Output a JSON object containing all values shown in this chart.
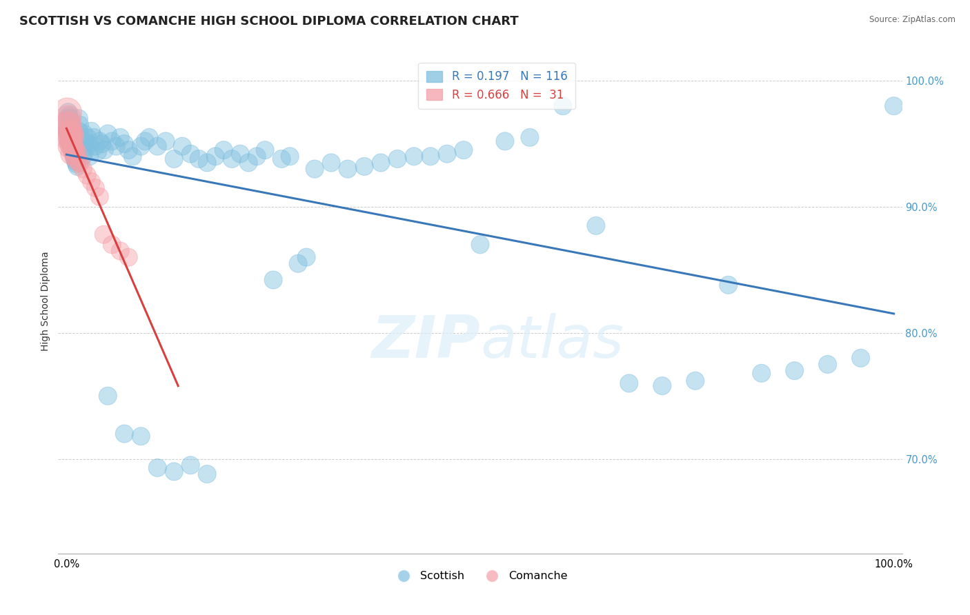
{
  "title": "SCOTTISH VS COMANCHE HIGH SCHOOL DIPLOMA CORRELATION CHART",
  "source": "Source: ZipAtlas.com",
  "ylabel": "High School Diploma",
  "xlim": [
    -0.01,
    1.01
  ],
  "ylim": [
    0.625,
    1.025
  ],
  "yticks": [
    0.7,
    0.8,
    0.9,
    1.0
  ],
  "ytick_labels": [
    "70.0%",
    "80.0%",
    "90.0%",
    "100.0%"
  ],
  "scottish_R": 0.197,
  "scottish_N": 116,
  "comanche_R": 0.666,
  "comanche_N": 31,
  "blue_color": "#7fbfdf",
  "pink_color": "#f4a0a8",
  "blue_line_color": "#3878b8",
  "pink_line_color": "#d84040",
  "background_color": "#ffffff",
  "grid_color": "#cccccc",
  "title_fontsize": 13,
  "axis_label_fontsize": 10,
  "tick_fontsize": 10.5,
  "legend_fontsize": 12,
  "watermark": "ZIPatlas",
  "scottish_x": [
    0.001,
    0.001,
    0.002,
    0.002,
    0.002,
    0.003,
    0.003,
    0.003,
    0.003,
    0.004,
    0.004,
    0.004,
    0.005,
    0.005,
    0.005,
    0.006,
    0.006,
    0.006,
    0.007,
    0.007,
    0.007,
    0.008,
    0.008,
    0.008,
    0.009,
    0.009,
    0.01,
    0.01,
    0.01,
    0.011,
    0.011,
    0.012,
    0.012,
    0.013,
    0.013,
    0.014,
    0.015,
    0.015,
    0.016,
    0.017,
    0.018,
    0.019,
    0.02,
    0.021,
    0.022,
    0.023,
    0.025,
    0.027,
    0.028,
    0.03,
    0.033,
    0.035,
    0.038,
    0.04,
    0.043,
    0.046,
    0.05,
    0.055,
    0.06,
    0.065,
    0.07,
    0.075,
    0.08,
    0.09,
    0.095,
    0.1,
    0.11,
    0.12,
    0.13,
    0.14,
    0.15,
    0.16,
    0.17,
    0.18,
    0.19,
    0.2,
    0.21,
    0.22,
    0.23,
    0.24,
    0.25,
    0.26,
    0.27,
    0.28,
    0.29,
    0.3,
    0.32,
    0.34,
    0.36,
    0.38,
    0.4,
    0.42,
    0.44,
    0.46,
    0.48,
    0.5,
    0.53,
    0.56,
    0.6,
    0.64,
    0.68,
    0.72,
    0.76,
    0.8,
    0.84,
    0.88,
    0.92,
    0.96,
    1.0,
    0.05,
    0.07,
    0.09,
    0.11,
    0.13,
    0.15,
    0.17
  ],
  "scottish_y": [
    0.96,
    0.97,
    0.958,
    0.965,
    0.975,
    0.952,
    0.962,
    0.968,
    0.972,
    0.955,
    0.963,
    0.97,
    0.95,
    0.958,
    0.966,
    0.948,
    0.956,
    0.964,
    0.945,
    0.953,
    0.961,
    0.943,
    0.951,
    0.959,
    0.941,
    0.949,
    0.938,
    0.946,
    0.954,
    0.936,
    0.944,
    0.934,
    0.942,
    0.932,
    0.94,
    0.938,
    0.96,
    0.97,
    0.965,
    0.955,
    0.95,
    0.945,
    0.94,
    0.958,
    0.95,
    0.945,
    0.955,
    0.95,
    0.94,
    0.96,
    0.955,
    0.948,
    0.944,
    0.952,
    0.95,
    0.945,
    0.958,
    0.952,
    0.948,
    0.955,
    0.95,
    0.945,
    0.94,
    0.948,
    0.952,
    0.955,
    0.948,
    0.952,
    0.938,
    0.948,
    0.942,
    0.938,
    0.935,
    0.94,
    0.945,
    0.938,
    0.942,
    0.935,
    0.94,
    0.945,
    0.842,
    0.938,
    0.94,
    0.855,
    0.86,
    0.93,
    0.935,
    0.93,
    0.932,
    0.935,
    0.938,
    0.94,
    0.94,
    0.942,
    0.945,
    0.87,
    0.952,
    0.955,
    0.98,
    0.885,
    0.76,
    0.758,
    0.762,
    0.838,
    0.768,
    0.77,
    0.775,
    0.78,
    0.98,
    0.75,
    0.72,
    0.718,
    0.693,
    0.69,
    0.695,
    0.688
  ],
  "scottish_sizes": [
    400,
    350,
    380,
    420,
    360,
    370,
    390,
    400,
    350,
    380,
    360,
    370,
    350,
    360,
    370,
    350,
    360,
    370,
    350,
    360,
    360,
    350,
    355,
    360,
    350,
    355,
    350,
    355,
    360,
    350,
    355,
    350,
    355,
    350,
    355,
    350,
    350,
    350,
    350,
    350,
    350,
    350,
    350,
    350,
    350,
    350,
    350,
    350,
    350,
    350,
    350,
    350,
    350,
    350,
    350,
    350,
    350,
    350,
    350,
    350,
    350,
    350,
    350,
    350,
    350,
    350,
    350,
    350,
    350,
    350,
    350,
    350,
    350,
    350,
    350,
    350,
    350,
    350,
    350,
    350,
    350,
    350,
    350,
    350,
    350,
    350,
    350,
    350,
    350,
    350,
    350,
    350,
    350,
    350,
    350,
    350,
    350,
    350,
    350,
    350,
    350,
    350,
    350,
    350,
    350,
    350,
    350,
    350,
    350,
    350,
    350,
    350,
    350,
    350,
    350,
    350
  ],
  "comanche_x": [
    0.001,
    0.001,
    0.002,
    0.002,
    0.003,
    0.003,
    0.004,
    0.004,
    0.005,
    0.005,
    0.006,
    0.006,
    0.007,
    0.008,
    0.008,
    0.009,
    0.01,
    0.011,
    0.012,
    0.013,
    0.015,
    0.017,
    0.02,
    0.025,
    0.03,
    0.035,
    0.04,
    0.045,
    0.055,
    0.065,
    0.075
  ],
  "comanche_y": [
    0.975,
    0.965,
    0.97,
    0.955,
    0.965,
    0.958,
    0.955,
    0.948,
    0.96,
    0.95,
    0.952,
    0.942,
    0.948,
    0.958,
    0.945,
    0.955,
    0.94,
    0.945,
    0.938,
    0.942,
    0.935,
    0.935,
    0.93,
    0.925,
    0.92,
    0.915,
    0.908,
    0.878,
    0.87,
    0.865,
    0.86
  ],
  "comanche_sizes": [
    900,
    800,
    750,
    700,
    680,
    650,
    620,
    600,
    580,
    560,
    540,
    520,
    500,
    480,
    460,
    450,
    440,
    420,
    410,
    400,
    380,
    360,
    350,
    350,
    350,
    350,
    350,
    350,
    350,
    350,
    350
  ]
}
